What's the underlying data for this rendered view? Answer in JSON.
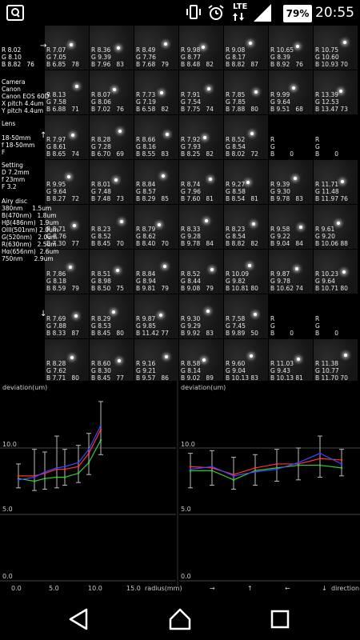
{
  "status": {
    "network": "LTE",
    "battery": "79%",
    "time": "20:55"
  },
  "arrows": {
    "right": "→",
    "up": "↑",
    "left": "←",
    "down": "↓"
  },
  "side_info": {
    "row0": "R 8.02\nG 8.10\nB 8.82   76",
    "camera": "Camera\nCanon\nCanon EOS 60D\nX pitch 4.4um\nY pitch 4.4um",
    "lens": "Lens\n\n18-50mm\nf 18-50mm\nF",
    "setting": "Setting\nD 7.2mm\nf 23mm\nF 3.2\n\nAiry disc\n380nm     1.5um\nB(470nm)   1.8um\nHβ(486nm)  1.9um\nOIII(501nm) 2.0um\nG(520nm)   2.0um\nR(630nm)   2.5um\nHα(656nm)  2.6um\n750nm      2.9um",
    "row4": "R 9.95\nG 9.64\nB 8.27   72",
    "row5": "R 8.71\nG 8.76\nB 7.30   77"
  },
  "grid_rows": [
    [
      "",
      "R 7.07\nG 7.05\nB 6.85   78",
      "R 8.36\nG 9.39\nB 7.96   83",
      "R 8.49\nG 7.76\nB 7.68   79",
      "R 9.98\nG 8.77\nB 8.48   82",
      "R 9.08\nG 8.17\nB 8.82   87",
      "R 10.65\nG 8.39\nB 8.92   76",
      "R 10.75\nG 10.60\nB 10.93 70"
    ],
    [
      "",
      "R 8.13\nG 7.58\nB 6.88   71",
      "R 8.07\nG 8.06\nB 7.02   76",
      "R 7.73\nG 7.19\nB 6.58   82",
      "R 7.91\nG 7.54\nB 7.75   74",
      "R 7.85\nG 7.85\nB 7.88   80",
      "R 9.99\nG 9.64\nB 9.51   68",
      "R 13.39\nG 12.53\nB 13.47 73"
    ],
    [
      "",
      "R 7.97\nG 8.61\nB 8.65   74",
      "R 8.28\nG 7.28\nB 6.70   69",
      "R 8.66\nG 8.16\nB 8.55   83",
      "R 7.92\nG 7.93\nB 8.25   82",
      "R 8.52\nG 8.54\nB 8.02   72",
      "R\nG\nB        0",
      "R\nG\nB        0"
    ],
    [
      "",
      "R 9.95\nG 9.64\nB 8.27   72",
      "R 8.01\nG 7.48\nB 7.48   73",
      "R 8.84\nG 8.57\nB 8.29   85",
      "R 8.74\nG 7.96\nB 7.60   81",
      "R 9.27\nG 8.58\nB 8.54   81",
      "R 9.39\nG 9.30\nB 9.78   83",
      "R 11.71\nG 11.48\nB 11.97 76"
    ],
    [
      "",
      "R 8.71\nG 8.76\nB 7.30   77",
      "R 8.23\nG 8.52\nB 8.45   70",
      "R 8.79\nG 8.62\nB 8.40   70",
      "R 8.33\nG 9.28\nB 9.78   84",
      "R 8.23\nG 8.54\nB 8.82   82",
      "R 9.58\nG 9.22\nB 9.04   84",
      "R 9.61\nG 9.20\nB 10.06 88"
    ],
    [
      "",
      "R 7.86\nG 8.18\nB 8.59   79",
      "R 8.51\nG 8.98\nB 8.50   75",
      "R 8.84\nG 8.94\nB 9.81   79",
      "R 8.52\nG 8.44\nB 9.08   79",
      "R 10.09\nG 9.82\nB 10.81 80",
      "R 9.87\nG 9.78\nB 10.62 74",
      "R 10.23\nG 9.64\nB 10.71 80"
    ],
    [
      "",
      "R 7.69\nG 7.88\nB 8.33   87",
      "R 8.29\nG 8.53\nB 8.45   80",
      "R 9.87\nG 9.85\nB 11.42 77",
      "R 9.30\nG 9.29\nB 9.92   83",
      "R 7.58\nG 7.45\nB 9.89   50",
      "R\nG\nB        0",
      "R\nG\nB        0"
    ],
    [
      "",
      "R 8.28\nG 7.62\nB 7.71   80",
      "R 8.60\nG 8.30\nB 8.45   77",
      "R 9.16\nG 9.21\nB 9.57   86",
      "R 8.58\nG 8.14\nB 9.02   89",
      "R 9.60\nG 9.04\nB 10.13 83",
      "R 11.03\nG 9.43\nB 10.13 81",
      "R 11.38\nG 10.77\nB 11.70 70"
    ]
  ],
  "charts": {
    "left_ylabel": "deviation(um)",
    "right_ylabel": "deviation(um)",
    "y_ticks": [
      "10.0",
      "5.0",
      "0.0"
    ],
    "x_ticks": [
      "0.0",
      "5.0",
      "10.0",
      "15.0"
    ],
    "xlabel": "radius(mm)",
    "dir_ticks": [
      "→",
      "↑",
      "←",
      "↓"
    ],
    "dir_label": "direction"
  },
  "chart_data": [
    {
      "type": "line",
      "xlabel": "radius(mm)",
      "ylabel": "deviation(um)",
      "ylim": [
        0,
        14
      ],
      "xlim": [
        0,
        17
      ],
      "x": [
        0.5,
        2.5,
        3.8,
        5.3,
        6.3,
        8.0,
        9.3,
        10.8
      ],
      "series": [
        {
          "color": "#ff3333",
          "values": [
            7.9,
            7.9,
            8.1,
            8.4,
            8.4,
            8.6,
            9.6,
            11.4
          ]
        },
        {
          "color": "#33cc33",
          "values": [
            7.7,
            7.5,
            7.7,
            7.8,
            7.8,
            8.1,
            8.9,
            10.6
          ]
        },
        {
          "color": "#4444ff",
          "values": [
            7.6,
            7.8,
            8.2,
            8.5,
            8.6,
            8.9,
            9.9,
            11.7
          ]
        }
      ],
      "error_min": [
        7.0,
        6.8,
        6.9,
        7.0,
        7.2,
        7.4,
        8.0,
        9.5
      ],
      "error_max": [
        8.8,
        9.9,
        9.7,
        10.9,
        9.9,
        10.2,
        11.1,
        13.5
      ]
    },
    {
      "type": "line",
      "xlabel": "direction",
      "ylabel": "deviation(um)",
      "ylim": [
        0,
        14
      ],
      "categories": [
        "→",
        "",
        "↑",
        "",
        "←",
        "",
        "↓",
        ""
      ],
      "series": [
        {
          "color": "#ff3333",
          "values": [
            8.6,
            8.5,
            8.0,
            8.5,
            8.8,
            8.8,
            9.2,
            9.1
          ]
        },
        {
          "color": "#33cc33",
          "values": [
            8.3,
            8.3,
            7.6,
            8.3,
            8.5,
            8.7,
            8.7,
            8.5
          ]
        },
        {
          "color": "#4444ff",
          "values": [
            8.4,
            8.6,
            7.9,
            8.2,
            8.4,
            8.9,
            9.6,
            8.8
          ]
        }
      ],
      "error_min": [
        7.0,
        7.2,
        6.9,
        7.2,
        7.5,
        7.6,
        7.8,
        7.9
      ],
      "error_max": [
        9.6,
        9.8,
        9.3,
        9.5,
        9.9,
        10.0,
        10.9,
        9.9
      ]
    }
  ]
}
